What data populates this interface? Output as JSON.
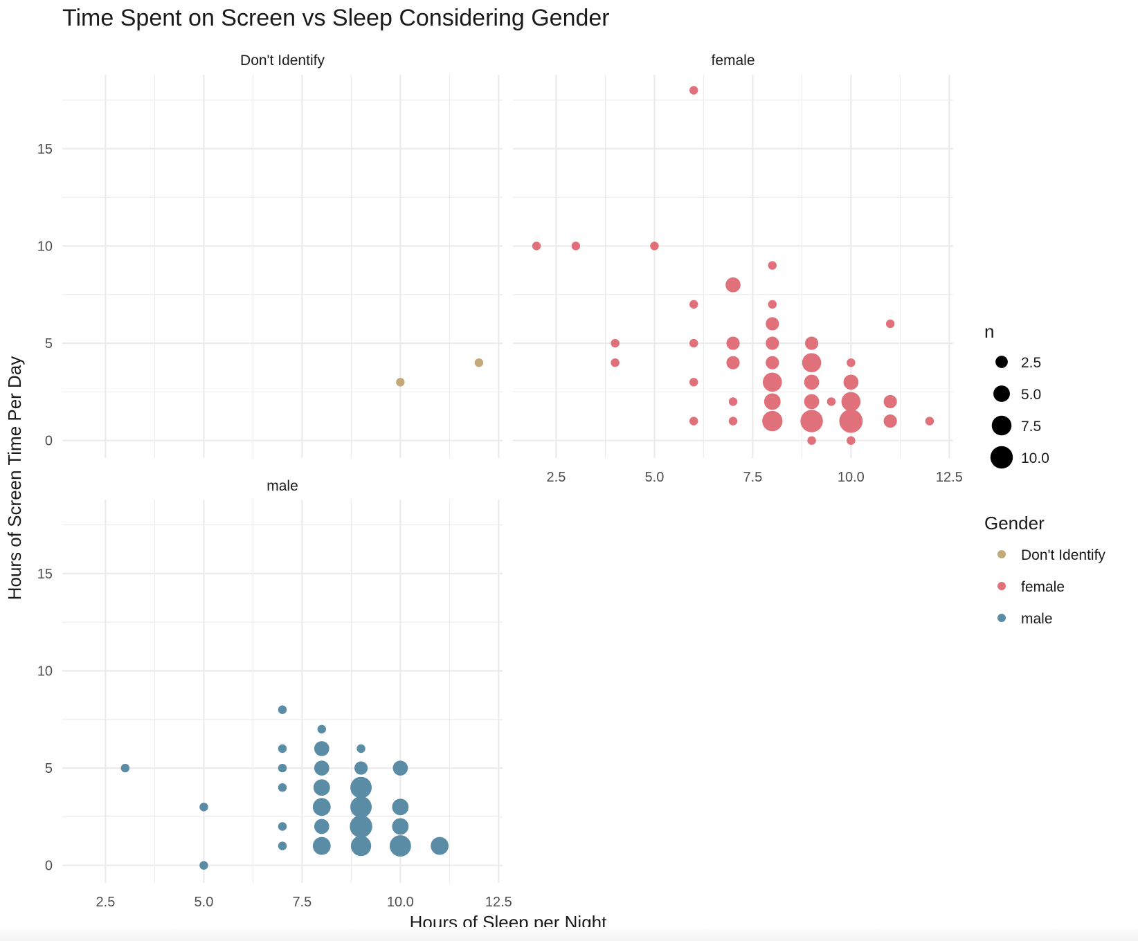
{
  "chart_data": {
    "type": "scatter",
    "title": "Time Spent on Screen vs Sleep Considering Gender",
    "xlabel": "Hours of Sleep per Night",
    "ylabel": "Hours of Screen Time Per Day",
    "xlim": [
      1.4,
      12.6
    ],
    "ylim": [
      -0.9,
      18.8
    ],
    "x_ticks": [
      2.5,
      5.0,
      7.5,
      10.0,
      12.5
    ],
    "x_tick_labels": [
      "2.5",
      "5.0",
      "7.5",
      "10.0",
      "12.5"
    ],
    "y_ticks": [
      0,
      5,
      10,
      15
    ],
    "y_tick_labels": [
      "0",
      "5",
      "10",
      "15"
    ],
    "colors": {
      "Don't Identify": "#c4a97a",
      "female": "#e07079",
      "male": "#5a8ca6"
    },
    "size_legend": {
      "title": "n",
      "values": [
        2.5,
        5.0,
        7.5,
        10.0
      ],
      "labels": [
        "2.5",
        "5.0",
        "7.5",
        "10.0"
      ]
    },
    "color_legend": {
      "title": "Gender",
      "entries": [
        "Don't Identify",
        "female",
        "male"
      ]
    },
    "facets": [
      {
        "name": "Don't Identify",
        "points": [
          [
            10,
            3,
            1
          ],
          [
            12,
            4,
            1
          ]
        ]
      },
      {
        "name": "female",
        "points": [
          [
            6,
            18,
            1
          ],
          [
            2,
            10,
            1
          ],
          [
            3,
            10,
            1
          ],
          [
            5,
            10,
            1
          ],
          [
            8,
            9,
            1
          ],
          [
            7,
            8,
            4
          ],
          [
            6,
            7,
            1
          ],
          [
            8,
            7,
            1
          ],
          [
            8,
            6,
            3
          ],
          [
            11,
            6,
            1
          ],
          [
            4,
            5,
            1
          ],
          [
            6,
            5,
            1
          ],
          [
            7,
            5,
            3
          ],
          [
            8,
            5,
            3
          ],
          [
            9,
            5,
            3
          ],
          [
            4,
            4,
            1
          ],
          [
            7,
            4,
            3
          ],
          [
            8,
            4,
            3
          ],
          [
            9,
            4,
            7
          ],
          [
            10,
            4,
            1
          ],
          [
            6,
            3,
            1
          ],
          [
            8,
            3,
            7
          ],
          [
            9,
            3,
            4
          ],
          [
            10,
            3,
            4
          ],
          [
            7,
            2,
            1
          ],
          [
            8,
            2,
            5
          ],
          [
            9,
            2,
            4
          ],
          [
            9.5,
            2,
            1
          ],
          [
            10,
            2,
            7
          ],
          [
            11,
            2,
            3
          ],
          [
            6,
            1,
            1
          ],
          [
            7,
            1,
            1
          ],
          [
            8,
            1,
            8
          ],
          [
            9,
            1,
            10
          ],
          [
            10,
            1,
            11
          ],
          [
            11,
            1,
            3
          ],
          [
            12,
            1,
            1
          ],
          [
            9,
            0,
            1
          ],
          [
            10,
            0,
            1
          ]
        ]
      },
      {
        "name": "male",
        "points": [
          [
            7,
            8,
            1
          ],
          [
            8,
            7,
            1
          ],
          [
            7,
            6,
            1
          ],
          [
            8,
            6,
            4
          ],
          [
            9,
            6,
            1
          ],
          [
            3,
            5,
            1
          ],
          [
            7,
            5,
            1
          ],
          [
            8,
            5,
            4
          ],
          [
            9,
            5,
            3
          ],
          [
            10,
            5,
            4
          ],
          [
            7,
            4,
            1
          ],
          [
            8,
            4,
            5
          ],
          [
            9,
            4,
            9
          ],
          [
            5,
            3,
            1
          ],
          [
            8,
            3,
            6
          ],
          [
            9,
            3,
            9
          ],
          [
            10,
            3,
            5
          ],
          [
            7,
            2,
            1
          ],
          [
            8,
            2,
            4
          ],
          [
            9,
            2,
            10
          ],
          [
            10,
            2,
            5
          ],
          [
            7,
            1,
            1
          ],
          [
            8,
            1,
            6
          ],
          [
            9,
            1,
            8
          ],
          [
            10,
            1,
            9
          ],
          [
            11,
            1,
            6
          ],
          [
            5,
            0,
            1
          ]
        ]
      }
    ]
  }
}
